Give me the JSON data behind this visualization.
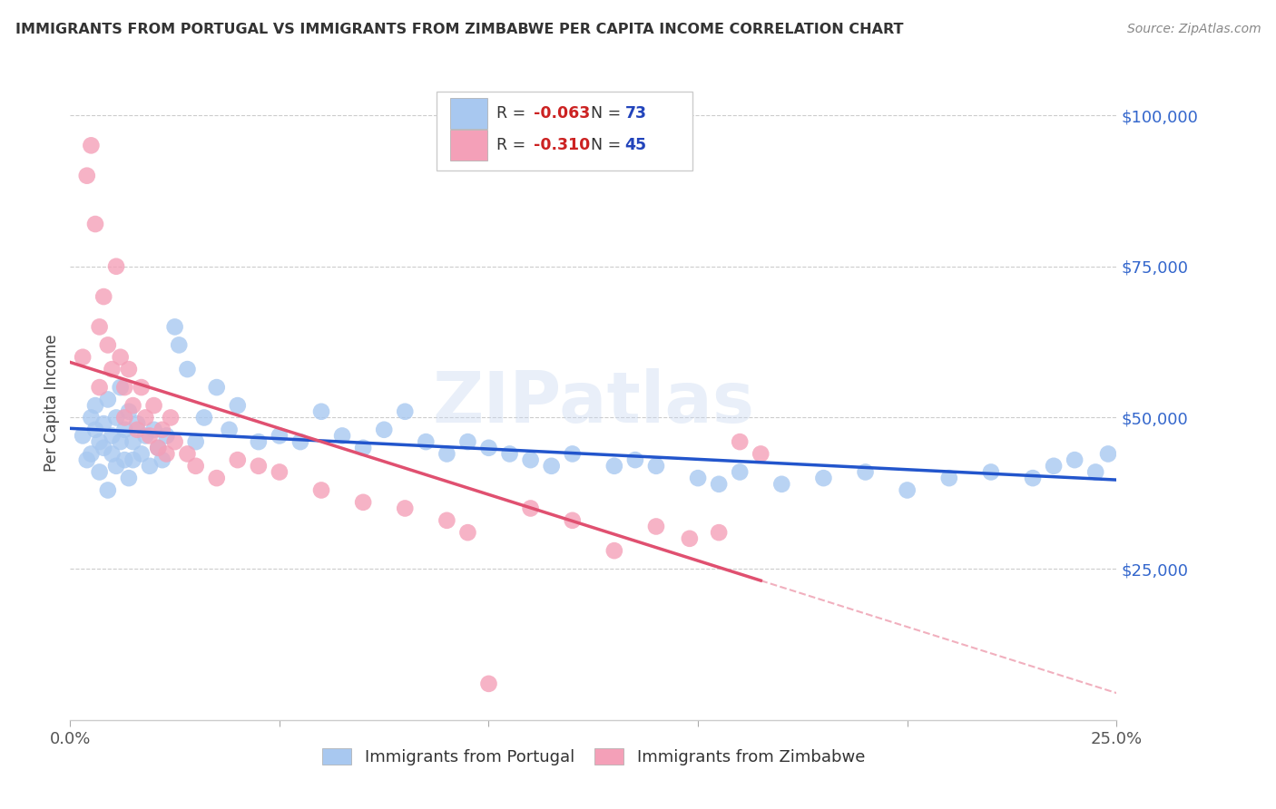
{
  "title": "IMMIGRANTS FROM PORTUGAL VS IMMIGRANTS FROM ZIMBABWE PER CAPITA INCOME CORRELATION CHART",
  "source": "Source: ZipAtlas.com",
  "ylabel_label": "Per Capita Income",
  "xlim": [
    0.0,
    0.25
  ],
  "ylim": [
    0,
    105000
  ],
  "yticks": [
    0,
    25000,
    50000,
    75000,
    100000
  ],
  "ytick_labels": [
    "",
    "$25,000",
    "$50,000",
    "$75,000",
    "$100,000"
  ],
  "xticks": [
    0.0,
    0.05,
    0.1,
    0.15,
    0.2,
    0.25
  ],
  "xtick_labels": [
    "0.0%",
    "",
    "",
    "",
    "",
    "25.0%"
  ],
  "portugal_color": "#A8C8F0",
  "zimbabwe_color": "#F4A0B8",
  "portugal_line_color": "#2255CC",
  "zimbabwe_line_color": "#E05070",
  "watermark": "ZIPatlas",
  "r_portugal": "-0.063",
  "n_portugal": "73",
  "r_zimbabwe": "-0.310",
  "n_zimbabwe": "45",
  "portugal_scatter_x": [
    0.003,
    0.004,
    0.005,
    0.005,
    0.006,
    0.006,
    0.007,
    0.007,
    0.008,
    0.008,
    0.009,
    0.009,
    0.01,
    0.01,
    0.011,
    0.011,
    0.012,
    0.012,
    0.013,
    0.013,
    0.014,
    0.014,
    0.015,
    0.015,
    0.016,
    0.017,
    0.018,
    0.019,
    0.02,
    0.021,
    0.022,
    0.023,
    0.025,
    0.026,
    0.028,
    0.03,
    0.032,
    0.035,
    0.038,
    0.04,
    0.045,
    0.05,
    0.055,
    0.06,
    0.065,
    0.07,
    0.075,
    0.08,
    0.085,
    0.09,
    0.095,
    0.1,
    0.105,
    0.11,
    0.115,
    0.12,
    0.13,
    0.135,
    0.14,
    0.15,
    0.155,
    0.16,
    0.17,
    0.18,
    0.19,
    0.2,
    0.21,
    0.22,
    0.23,
    0.235,
    0.24,
    0.245,
    0.248
  ],
  "portugal_scatter_y": [
    47000,
    43000,
    50000,
    44000,
    48000,
    52000,
    46000,
    41000,
    49000,
    45000,
    53000,
    38000,
    47000,
    44000,
    50000,
    42000,
    55000,
    46000,
    48000,
    43000,
    51000,
    40000,
    46000,
    43000,
    49000,
    44000,
    47000,
    42000,
    48000,
    45000,
    43000,
    47000,
    65000,
    62000,
    58000,
    46000,
    50000,
    55000,
    48000,
    52000,
    46000,
    47000,
    46000,
    51000,
    47000,
    45000,
    48000,
    51000,
    46000,
    44000,
    46000,
    45000,
    44000,
    43000,
    42000,
    44000,
    42000,
    43000,
    42000,
    40000,
    39000,
    41000,
    39000,
    40000,
    41000,
    38000,
    40000,
    41000,
    40000,
    42000,
    43000,
    41000,
    44000
  ],
  "zimbabwe_scatter_x": [
    0.003,
    0.004,
    0.005,
    0.006,
    0.007,
    0.007,
    0.008,
    0.009,
    0.01,
    0.011,
    0.012,
    0.013,
    0.013,
    0.014,
    0.015,
    0.016,
    0.017,
    0.018,
    0.019,
    0.02,
    0.021,
    0.022,
    0.023,
    0.024,
    0.025,
    0.028,
    0.03,
    0.035,
    0.04,
    0.045,
    0.05,
    0.06,
    0.07,
    0.08,
    0.09,
    0.095,
    0.1,
    0.11,
    0.12,
    0.13,
    0.14,
    0.148,
    0.155,
    0.16,
    0.165
  ],
  "zimbabwe_scatter_y": [
    60000,
    90000,
    95000,
    82000,
    65000,
    55000,
    70000,
    62000,
    58000,
    75000,
    60000,
    55000,
    50000,
    58000,
    52000,
    48000,
    55000,
    50000,
    47000,
    52000,
    45000,
    48000,
    44000,
    50000,
    46000,
    44000,
    42000,
    40000,
    43000,
    42000,
    41000,
    38000,
    36000,
    35000,
    33000,
    31000,
    6000,
    35000,
    33000,
    28000,
    32000,
    30000,
    31000,
    46000,
    44000
  ]
}
